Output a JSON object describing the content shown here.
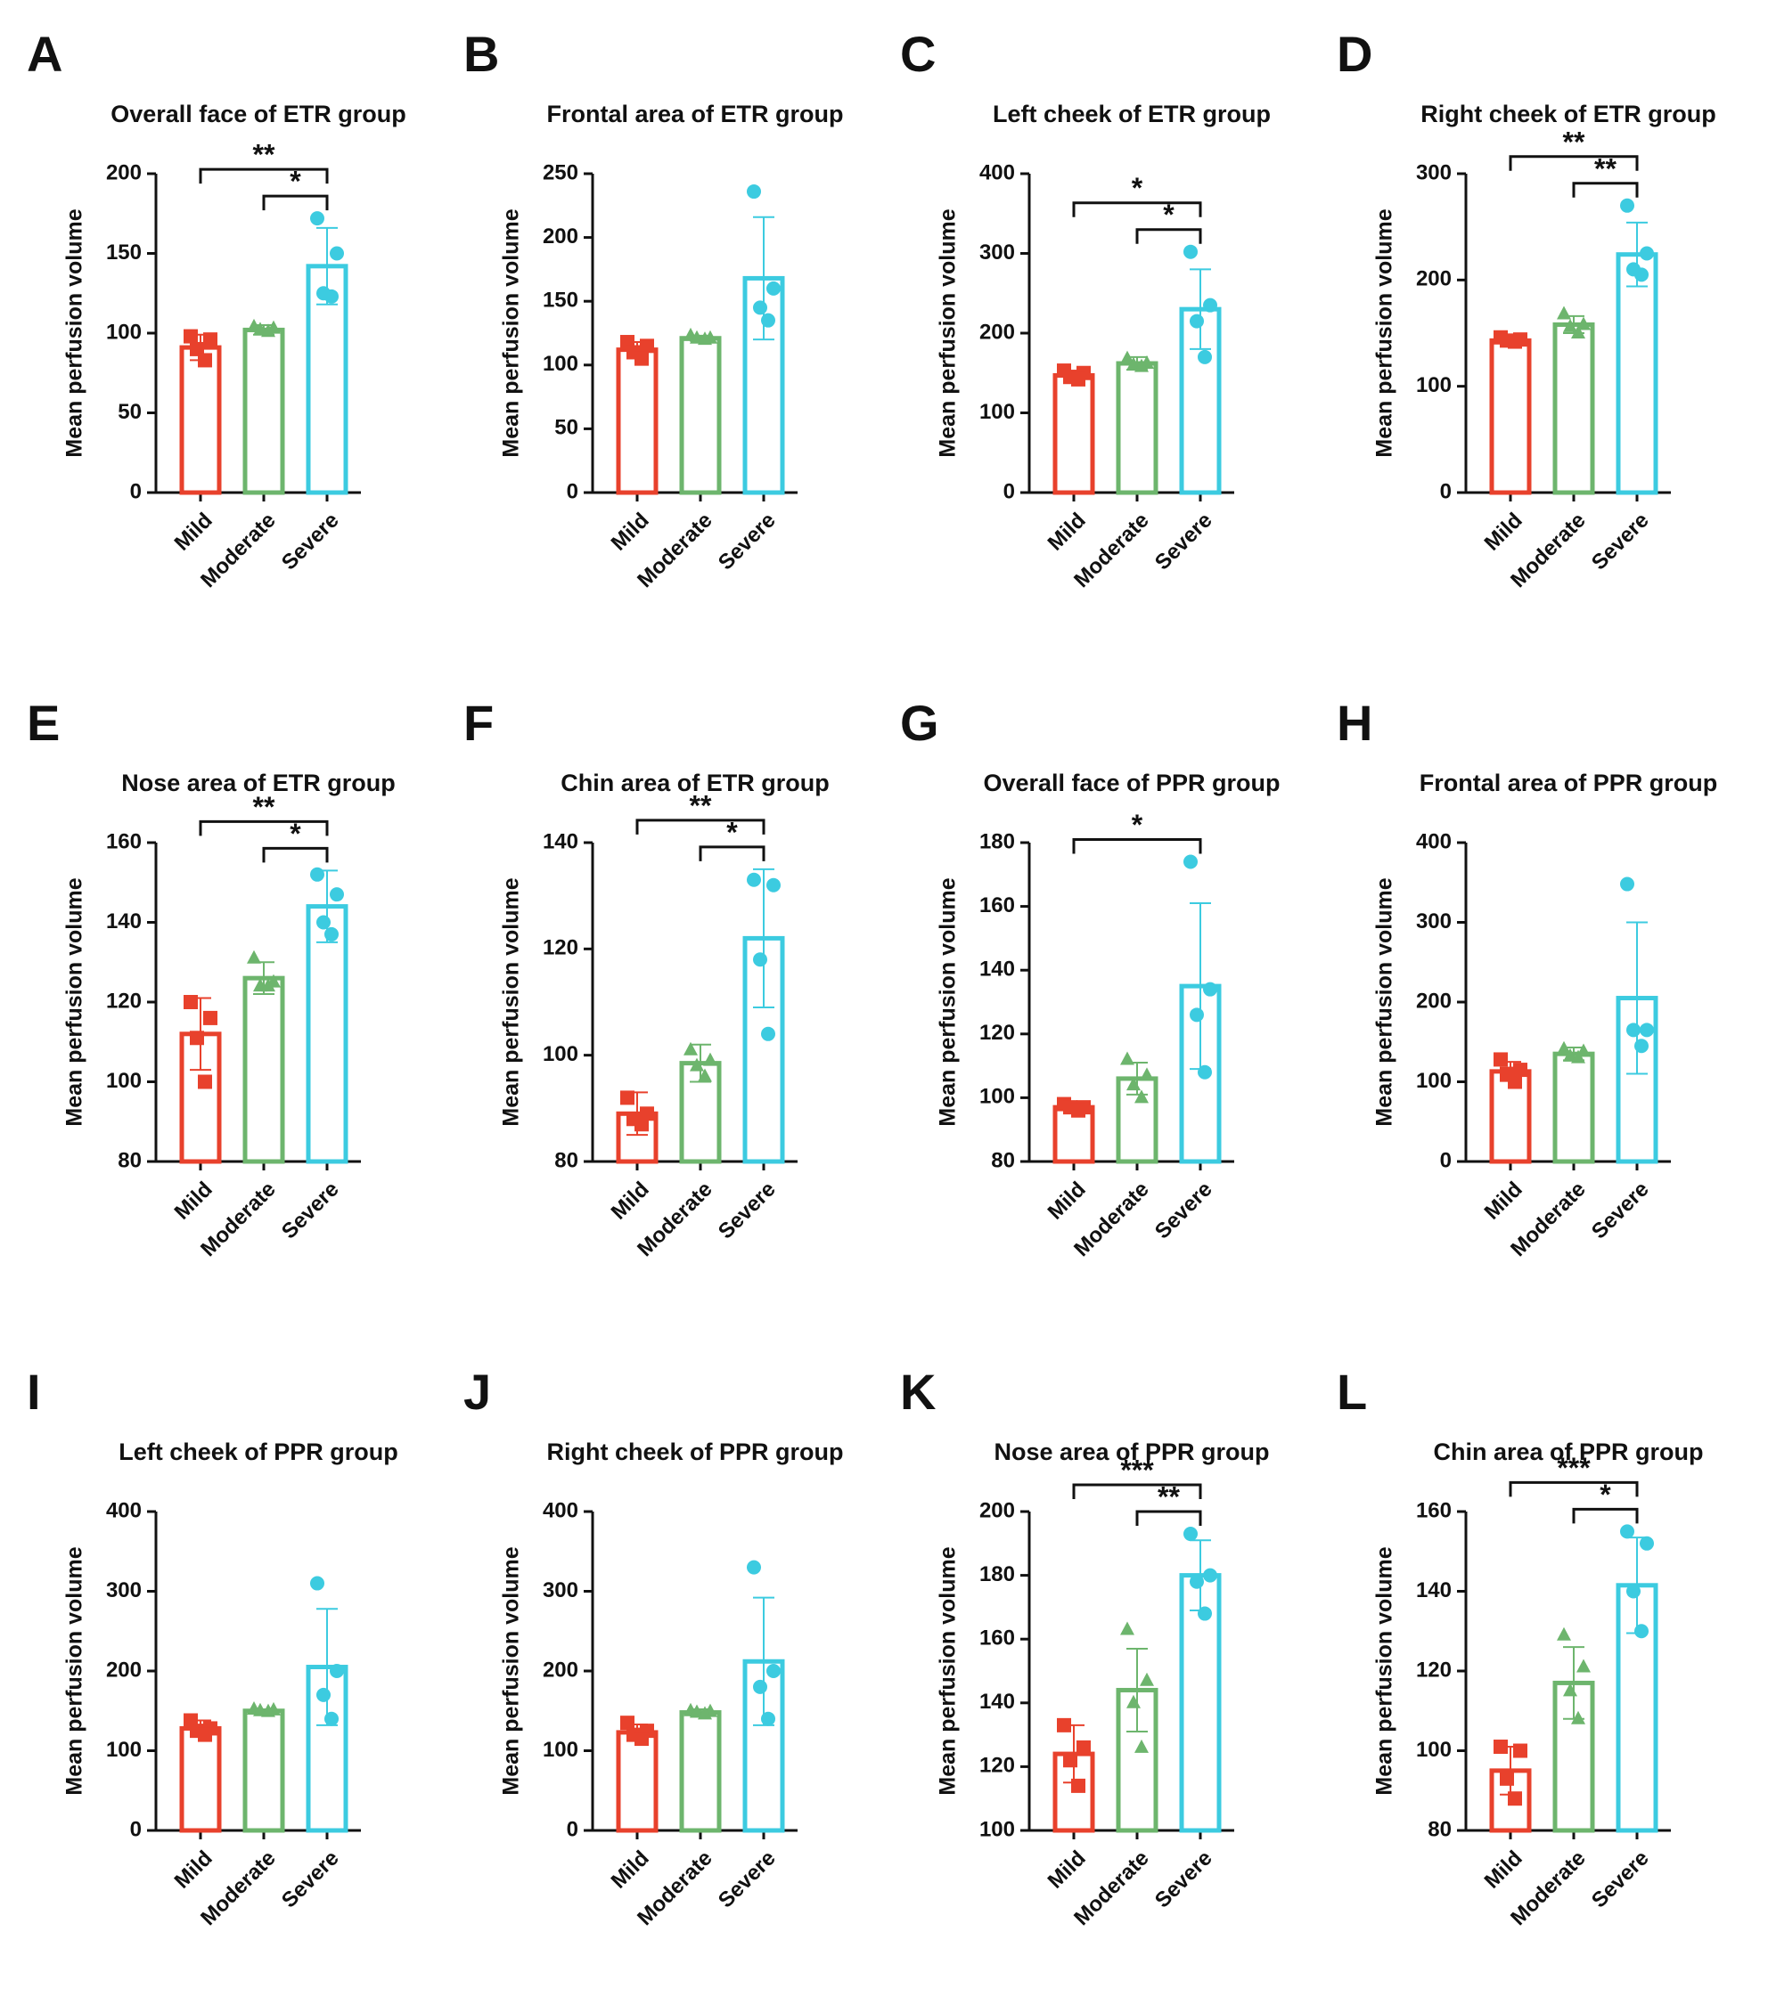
{
  "chart_data": [
    {
      "type": "bar",
      "panel": "A",
      "title": "Overall face of ETR group",
      "y_label": "Mean perfusion volume",
      "categories": [
        "Mild",
        "Moderate",
        "Severe"
      ],
      "colors": [
        "#e8412c",
        "#6db56d",
        "#3ccbe0"
      ],
      "values": [
        91,
        102,
        142
      ],
      "errors": [
        8,
        3,
        24
      ],
      "points": [
        [
          98,
          96,
          90,
          83
        ],
        [
          104,
          103,
          102,
          101
        ],
        [
          172,
          150,
          125,
          123
        ]
      ],
      "ylim": [
        0,
        200
      ],
      "yticks": [
        0,
        50,
        100,
        150,
        200
      ],
      "significance": [
        {
          "between": [
            "Moderate",
            "Severe"
          ],
          "label": "*"
        },
        {
          "between": [
            "Mild",
            "Severe"
          ],
          "label": "**"
        }
      ]
    },
    {
      "type": "bar",
      "panel": "B",
      "title": "Frontal area of ETR group",
      "y_label": "Mean perfusion volume",
      "categories": [
        "Mild",
        "Moderate",
        "Severe"
      ],
      "colors": [
        "#e8412c",
        "#6db56d",
        "#3ccbe0"
      ],
      "values": [
        112,
        121,
        168
      ],
      "errors": [
        6,
        2,
        48
      ],
      "points": [
        [
          118,
          115,
          110,
          105
        ],
        [
          123,
          121,
          121,
          120
        ],
        [
          236,
          160,
          145,
          135
        ]
      ],
      "ylim": [
        0,
        250
      ],
      "yticks": [
        0,
        50,
        100,
        150,
        200,
        250
      ],
      "significance": []
    },
    {
      "type": "bar",
      "panel": "C",
      "title": "Left cheek of ETR group",
      "y_label": "Mean perfusion volume",
      "categories": [
        "Mild",
        "Moderate",
        "Severe"
      ],
      "colors": [
        "#e8412c",
        "#6db56d",
        "#3ccbe0"
      ],
      "values": [
        147,
        162,
        230
      ],
      "errors": [
        6,
        8,
        50
      ],
      "points": [
        [
          153,
          150,
          145,
          142
        ],
        [
          168,
          162,
          160,
          158
        ],
        [
          302,
          235,
          215,
          170
        ]
      ],
      "ylim": [
        0,
        400
      ],
      "yticks": [
        0,
        100,
        200,
        300,
        400
      ],
      "significance": [
        {
          "between": [
            "Moderate",
            "Severe"
          ],
          "label": "*"
        },
        {
          "between": [
            "Mild",
            "Severe"
          ],
          "label": "*"
        }
      ]
    },
    {
      "type": "bar",
      "panel": "D",
      "title": "Right cheek of ETR group",
      "y_label": "Mean perfusion volume",
      "categories": [
        "Mild",
        "Moderate",
        "Severe"
      ],
      "colors": [
        "#e8412c",
        "#6db56d",
        "#3ccbe0"
      ],
      "values": [
        143,
        158,
        224
      ],
      "errors": [
        3,
        8,
        30
      ],
      "points": [
        [
          146,
          144,
          143,
          142
        ],
        [
          168,
          158,
          156,
          150
        ],
        [
          270,
          225,
          210,
          205
        ]
      ],
      "ylim": [
        0,
        300
      ],
      "yticks": [
        0,
        100,
        200,
        300
      ],
      "significance": [
        {
          "between": [
            "Moderate",
            "Severe"
          ],
          "label": "**"
        },
        {
          "between": [
            "Mild",
            "Severe"
          ],
          "label": "**"
        }
      ]
    },
    {
      "type": "bar",
      "panel": "E",
      "title": "Nose area of ETR group",
      "y_label": "Mean perfusion volume",
      "categories": [
        "Mild",
        "Moderate",
        "Severe"
      ],
      "colors": [
        "#e8412c",
        "#6db56d",
        "#3ccbe0"
      ],
      "values": [
        112,
        126,
        144
      ],
      "errors": [
        9,
        4,
        9
      ],
      "points": [
        [
          120,
          116,
          111,
          100
        ],
        [
          131,
          125,
          124,
          124
        ],
        [
          152,
          147,
          140,
          137
        ]
      ],
      "ylim": [
        80,
        160
      ],
      "yticks": [
        80,
        100,
        120,
        140,
        160
      ],
      "significance": [
        {
          "between": [
            "Moderate",
            "Severe"
          ],
          "label": "*"
        },
        {
          "between": [
            "Mild",
            "Severe"
          ],
          "label": "**"
        }
      ]
    },
    {
      "type": "bar",
      "panel": "F",
      "title": "Chin area of ETR group",
      "y_label": "Mean perfusion volume",
      "categories": [
        "Mild",
        "Moderate",
        "Severe"
      ],
      "colors": [
        "#e8412c",
        "#6db56d",
        "#3ccbe0"
      ],
      "values": [
        89,
        98.5,
        122
      ],
      "errors": [
        4,
        3.5,
        13
      ],
      "points": [
        [
          92,
          89,
          88,
          87
        ],
        [
          101,
          99,
          98,
          96
        ],
        [
          133,
          132,
          118,
          104
        ]
      ],
      "ylim": [
        80,
        140
      ],
      "yticks": [
        80,
        100,
        120,
        140
      ],
      "significance": [
        {
          "between": [
            "Moderate",
            "Severe"
          ],
          "label": "*"
        },
        {
          "between": [
            "Mild",
            "Severe"
          ],
          "label": "**"
        }
      ]
    },
    {
      "type": "bar",
      "panel": "G",
      "title": "Overall face of PPR group",
      "y_label": "Mean perfusion volume",
      "categories": [
        "Mild",
        "Moderate",
        "Severe"
      ],
      "colors": [
        "#e8412c",
        "#6db56d",
        "#3ccbe0"
      ],
      "values": [
        97,
        106,
        135
      ],
      "errors": [
        1,
        5,
        26
      ],
      "points": [
        [
          98,
          97,
          97,
          96
        ],
        [
          112,
          107,
          104,
          100
        ],
        [
          174,
          134,
          126,
          108
        ]
      ],
      "ylim": [
        80,
        180
      ],
      "yticks": [
        80,
        100,
        120,
        140,
        160,
        180
      ],
      "significance": [
        {
          "between": [
            "Mild",
            "Severe"
          ],
          "label": "*"
        }
      ]
    },
    {
      "type": "bar",
      "panel": "H",
      "title": "Frontal area of PPR group",
      "y_label": "Mean perfusion volume",
      "categories": [
        "Mild",
        "Moderate",
        "Severe"
      ],
      "colors": [
        "#e8412c",
        "#6db56d",
        "#3ccbe0"
      ],
      "values": [
        113,
        135,
        205
      ],
      "errors": [
        12,
        8,
        95
      ],
      "points": [
        [
          128,
          115,
          110,
          100
        ],
        [
          141,
          138,
          132,
          130
        ],
        [
          348,
          165,
          165,
          145
        ]
      ],
      "ylim": [
        0,
        400
      ],
      "yticks": [
        0,
        100,
        200,
        300,
        400
      ],
      "significance": []
    },
    {
      "type": "bar",
      "panel": "I",
      "title": "Left cheek of PPR group",
      "y_label": "Mean perfusion volume",
      "categories": [
        "Mild",
        "Moderate",
        "Severe"
      ],
      "colors": [
        "#e8412c",
        "#6db56d",
        "#3ccbe0"
      ],
      "values": [
        128,
        150,
        205
      ],
      "errors": [
        10,
        2,
        73
      ],
      "points": [
        [
          138,
          128,
          125,
          120
        ],
        [
          152,
          151,
          150,
          149
        ],
        [
          310,
          200,
          170,
          140
        ]
      ],
      "ylim": [
        0,
        400
      ],
      "yticks": [
        0,
        100,
        200,
        300,
        400
      ],
      "significance": []
    },
    {
      "type": "bar",
      "panel": "J",
      "title": "Right cheek of PPR group",
      "y_label": "Mean perfusion volume",
      "categories": [
        "Mild",
        "Moderate",
        "Severe"
      ],
      "colors": [
        "#e8412c",
        "#6db56d",
        "#3ccbe0"
      ],
      "values": [
        123,
        148,
        212
      ],
      "errors": [
        10,
        4,
        80
      ],
      "points": [
        [
          135,
          125,
          120,
          115
        ],
        [
          150,
          149,
          148,
          146
        ],
        [
          330,
          200,
          180,
          140
        ]
      ],
      "ylim": [
        0,
        400
      ],
      "yticks": [
        0,
        100,
        200,
        300,
        400
      ],
      "significance": []
    },
    {
      "type": "bar",
      "panel": "K",
      "title": "Nose area of PPR group",
      "y_label": "Mean perfusion volume",
      "categories": [
        "Mild",
        "Moderate",
        "Severe"
      ],
      "colors": [
        "#e8412c",
        "#6db56d",
        "#3ccbe0"
      ],
      "values": [
        124,
        144,
        180
      ],
      "errors": [
        9,
        13,
        11
      ],
      "points": [
        [
          133,
          126,
          122,
          114
        ],
        [
          163,
          147,
          140,
          126
        ],
        [
          193,
          180,
          178,
          168
        ]
      ],
      "ylim": [
        100,
        200
      ],
      "yticks": [
        100,
        120,
        140,
        160,
        180,
        200
      ],
      "significance": [
        {
          "between": [
            "Moderate",
            "Severe"
          ],
          "label": "**"
        },
        {
          "between": [
            "Mild",
            "Severe"
          ],
          "label": "***"
        }
      ]
    },
    {
      "type": "bar",
      "panel": "L",
      "title": "Chin area of PPR group",
      "y_label": "Mean perfusion volume",
      "categories": [
        "Mild",
        "Moderate",
        "Severe"
      ],
      "colors": [
        "#e8412c",
        "#6db56d",
        "#3ccbe0"
      ],
      "values": [
        95,
        117,
        141.5
      ],
      "errors": [
        6,
        9,
        12
      ],
      "points": [
        [
          101,
          100,
          93,
          88
        ],
        [
          129,
          121,
          115,
          108
        ],
        [
          155,
          152,
          140,
          130
        ]
      ],
      "ylim": [
        80,
        160
      ],
      "yticks": [
        80,
        100,
        120,
        140,
        160
      ],
      "significance": [
        {
          "between": [
            "Moderate",
            "Severe"
          ],
          "label": "*"
        },
        {
          "between": [
            "Mild",
            "Severe"
          ],
          "label": "***"
        }
      ]
    }
  ]
}
